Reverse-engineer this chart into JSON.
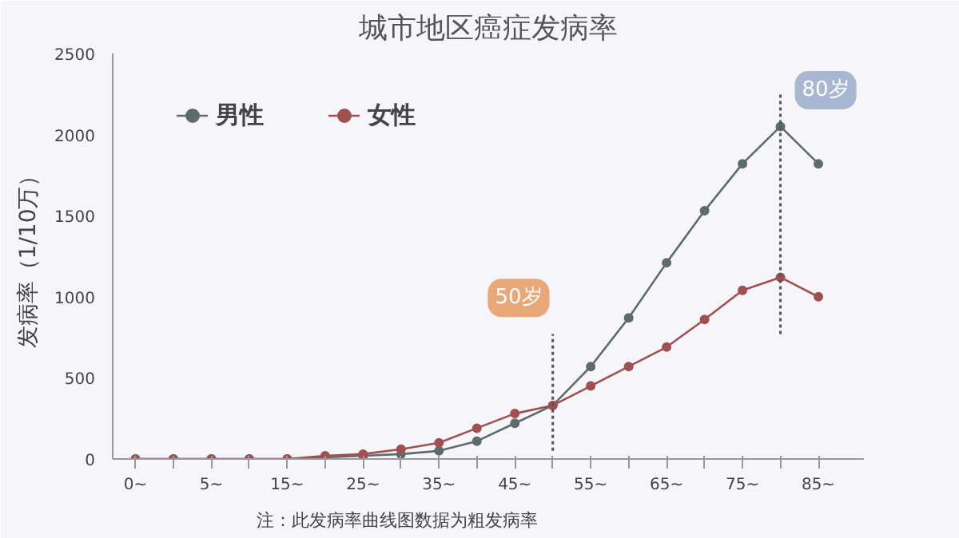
{
  "chart_data": {
    "type": "line",
    "title": "城市地区癌症发病率",
    "ylabel": "发病率（1/10万）",
    "categories": [
      "0~",
      null,
      "5~",
      null,
      "15~",
      null,
      "25~",
      null,
      "35~",
      null,
      "45~",
      null,
      "55~",
      null,
      "65~",
      null,
      "75~",
      null,
      "85~"
    ],
    "series": [
      {
        "name": "男性",
        "color": "#5f6b6b",
        "values": [
          0,
          0,
          0,
          0,
          0,
          10,
          20,
          30,
          50,
          110,
          220,
          330,
          570,
          870,
          1210,
          1530,
          1820,
          2050,
          1820
        ]
      },
      {
        "name": "女性",
        "color": "#a0504f",
        "values": [
          0,
          0,
          0,
          0,
          0,
          20,
          30,
          60,
          100,
          190,
          280,
          330,
          450,
          570,
          690,
          860,
          1040,
          1120,
          1000
        ]
      }
    ],
    "ylim": [
      0,
      2500
    ],
    "yticks": [
      0,
      500,
      1000,
      1500,
      2000,
      2500
    ],
    "annotations": [
      "50岁",
      "80岁",
      "注：此发病率曲线图数据为粗发病率"
    ],
    "marker": "circle",
    "line_style": "solid",
    "grid": false,
    "legend": "top"
  }
}
